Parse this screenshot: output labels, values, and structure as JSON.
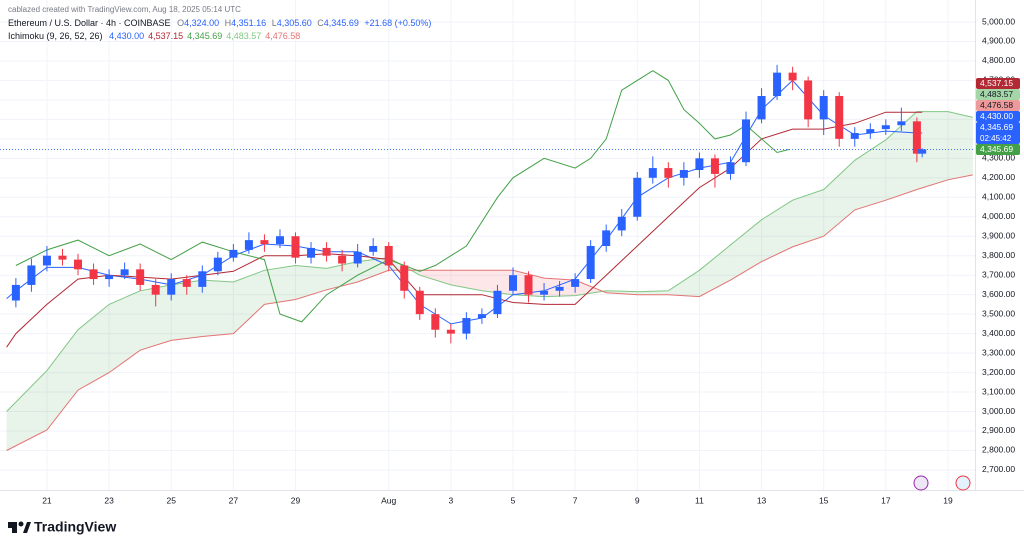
{
  "header": {
    "credit": "cablazed created with TradingView.com, Aug 18, 2025 05:14 UTC",
    "symbol": "Ethereum / U.S. Dollar · 4h · COINBASE",
    "ohlc": [
      {
        "label": "O",
        "value": "4,324.00"
      },
      {
        "label": "H",
        "value": "4,351.16"
      },
      {
        "label": "L",
        "value": "4,305.60"
      },
      {
        "label": "C",
        "value": "4,345.69"
      }
    ],
    "change": "+21.68 (+0.50%)",
    "indicator": "Ichimoku (9, 26, 52, 26)",
    "indicator_values": [
      {
        "value": "4,430.00",
        "color": "#2962ff"
      },
      {
        "value": "4,537.15",
        "color": "#b22833"
      },
      {
        "value": "4,345.69",
        "color": "#43a047"
      },
      {
        "value": "4,483.57",
        "color": "#81c784"
      },
      {
        "value": "4,476.58",
        "color": "#e57373"
      }
    ]
  },
  "chart_data": {
    "type": "candlestick",
    "x": [
      20,
      20.5,
      21,
      21.5,
      22,
      22.5,
      23,
      23.5,
      24,
      24.5,
      25,
      25.5,
      26,
      26.5,
      27,
      27.5,
      28,
      28.5,
      29,
      29.5,
      30,
      30.5,
      31,
      31.5,
      32,
      32.5,
      33,
      33.5,
      34,
      34.5,
      35,
      35.5,
      36,
      36.5,
      37,
      37.5,
      38,
      38.5,
      39,
      39.5,
      40,
      40.5,
      41,
      41.5,
      42,
      42.5,
      43,
      43.5,
      44,
      44.5,
      45,
      45.5,
      46,
      46.5,
      47,
      47.5,
      48,
      48.5,
      49,
      49.17
    ],
    "open": [
      3570,
      3650,
      3750,
      3800,
      3780,
      3730,
      3680,
      3700,
      3730,
      3650,
      3600,
      3680,
      3640,
      3720,
      3790,
      3830,
      3880,
      3860,
      3900,
      3790,
      3840,
      3800,
      3760,
      3820,
      3850,
      3750,
      3620,
      3500,
      3420,
      3400,
      3480,
      3500,
      3620,
      3700,
      3600,
      3620,
      3640,
      3680,
      3850,
      3930,
      4000,
      4200,
      4250,
      4200,
      4240,
      4300,
      4220,
      4280,
      4500,
      4620,
      4740,
      4700,
      4500,
      4620,
      4400,
      4430,
      4450,
      4470,
      4490,
      4324
    ],
    "high": [
      3685,
      3785,
      3850,
      3835,
      3810,
      3760,
      3730,
      3765,
      3760,
      3680,
      3710,
      3700,
      3750,
      3820,
      3860,
      3920,
      3910,
      3935,
      3920,
      3870,
      3870,
      3830,
      3860,
      3890,
      3870,
      3770,
      3640,
      3530,
      3450,
      3510,
      3530,
      3650,
      3740,
      3720,
      3660,
      3670,
      3710,
      3880,
      3960,
      4040,
      4230,
      4310,
      4280,
      4280,
      4330,
      4320,
      4310,
      4540,
      4660,
      4780,
      4770,
      4720,
      4650,
      4640,
      4460,
      4480,
      4500,
      4560,
      4510,
      4351.16
    ],
    "low": [
      3535,
      3615,
      3720,
      3750,
      3700,
      3650,
      3640,
      3680,
      3620,
      3540,
      3570,
      3600,
      3610,
      3700,
      3770,
      3810,
      3820,
      3840,
      3760,
      3760,
      3770,
      3720,
      3740,
      3800,
      3720,
      3580,
      3470,
      3380,
      3350,
      3370,
      3450,
      3480,
      3600,
      3560,
      3570,
      3590,
      3610,
      3660,
      3820,
      3900,
      3980,
      4170,
      4150,
      4160,
      4200,
      4150,
      4190,
      4260,
      4480,
      4600,
      4650,
      4460,
      4420,
      4360,
      4360,
      4400,
      4420,
      4440,
      4280,
      4305.6
    ],
    "close": [
      3650,
      3750,
      3800,
      3780,
      3730,
      3680,
      3700,
      3730,
      3650,
      3600,
      3680,
      3640,
      3720,
      3790,
      3830,
      3880,
      3860,
      3900,
      3790,
      3840,
      3800,
      3760,
      3820,
      3850,
      3750,
      3620,
      3500,
      3420,
      3400,
      3480,
      3500,
      3620,
      3700,
      3600,
      3620,
      3640,
      3680,
      3850,
      3930,
      4000,
      4200,
      4250,
      4200,
      4240,
      4300,
      4220,
      4280,
      4500,
      4620,
      4740,
      4700,
      4500,
      4620,
      4400,
      4430,
      4450,
      4470,
      4490,
      4324,
      4345.69
    ],
    "up_color": "#2962ff",
    "down_color": "#f23645",
    "xlim": [
      19.65,
      50.87
    ],
    "xticks": [
      21,
      23,
      25,
      27,
      29,
      {
        "value": 32,
        "label": "Aug"
      },
      {
        "value": 34,
        "label": "3"
      },
      {
        "value": 36,
        "label": "5"
      },
      {
        "value": 38,
        "label": "7"
      },
      {
        "value": 40,
        "label": "9"
      },
      {
        "value": 42,
        "label": "11"
      },
      {
        "value": 44,
        "label": "13"
      },
      {
        "value": 46,
        "label": "15"
      },
      {
        "value": 48,
        "label": "17"
      },
      {
        "value": 50,
        "label": "19"
      }
    ],
    "ylim": [
      2597,
      5036
    ],
    "yticks": [
      {
        "value": 2700,
        "label": "2,700.00"
      },
      {
        "value": 2800,
        "label": "2,800.00"
      },
      {
        "value": 2900,
        "label": "2,900.00"
      },
      {
        "value": 3000,
        "label": "3,000.00"
      },
      {
        "value": 3100,
        "label": "3,100.00"
      },
      {
        "value": 3200,
        "label": "3,200.00"
      },
      {
        "value": 3300,
        "label": "3,300.00"
      },
      {
        "value": 3400,
        "label": "3,400.00"
      },
      {
        "value": 3500,
        "label": "3,500.00"
      },
      {
        "value": 3600,
        "label": "3,600.00"
      },
      {
        "value": 3700,
        "label": "3,700.00"
      },
      {
        "value": 3800,
        "label": "3,800.00"
      },
      {
        "value": 3900,
        "label": "3,900.00"
      },
      {
        "value": 4000,
        "label": "4,000.00"
      },
      {
        "value": 4100,
        "label": "4,100.00"
      },
      {
        "value": 4200,
        "label": "4,200.00"
      },
      {
        "value": 4300,
        "label": "4,300.00"
      },
      {
        "value": 4400,
        "label": "4,400.00"
      },
      {
        "value": 4500,
        "label": "4,500.00"
      },
      {
        "value": 4600,
        "label": "4,600.00"
      },
      {
        "value": 4700,
        "label": "4,700.00"
      },
      {
        "value": 4800,
        "label": "4,800.00"
      },
      {
        "value": 4900,
        "label": "4,900.00"
      },
      {
        "value": 5000,
        "label": "5,000.00"
      }
    ],
    "grid": true,
    "price_line_color": "#2962ff",
    "lines": [
      {
        "color": "#2962ff",
        "x": [
          19.7,
          20,
          21,
          22,
          23,
          24,
          25,
          26,
          27,
          28,
          29,
          30,
          31,
          32,
          33,
          34,
          35,
          36,
          37,
          38,
          39,
          40,
          41,
          42,
          43,
          44,
          45,
          46,
          47,
          48,
          49,
          49.17
        ],
        "values": [
          3580,
          3620,
          3740,
          3740,
          3700,
          3680,
          3650,
          3700,
          3800,
          3860,
          3850,
          3820,
          3820,
          3750,
          3550,
          3450,
          3480,
          3600,
          3620,
          3680,
          3880,
          4100,
          4200,
          4250,
          4280,
          4550,
          4700,
          4520,
          4420,
          4440,
          4430,
          4430
        ]
      },
      {
        "color": "#b22833",
        "x": [
          19.7,
          20,
          21,
          22,
          23,
          24,
          25,
          26,
          27,
          28,
          29,
          30,
          31,
          32,
          33,
          34,
          35,
          36,
          37,
          38,
          39,
          40,
          41,
          42,
          43,
          44,
          45,
          46,
          47,
          48,
          49,
          49.17
        ],
        "values": [
          3330,
          3400,
          3550,
          3680,
          3700,
          3690,
          3680,
          3700,
          3720,
          3800,
          3800,
          3810,
          3800,
          3780,
          3600,
          3600,
          3600,
          3560,
          3550,
          3550,
          3700,
          3850,
          4000,
          4150,
          4250,
          4400,
          4450,
          4450,
          4480,
          4537,
          4537.15,
          4537.15
        ]
      },
      {
        "color": "#43a047",
        "x": [
          20,
          21,
          22,
          23,
          24,
          25,
          26,
          27,
          28,
          28.5,
          29.2,
          30,
          31,
          32,
          33,
          33.5,
          34.5,
          35.5,
          36,
          37,
          38,
          38.5,
          39,
          39.5,
          40.5,
          41,
          41.5,
          42,
          42.5,
          43,
          43.5,
          44.5,
          44.9
        ],
        "values": [
          3750,
          3830,
          3880,
          3800,
          3860,
          3780,
          3870,
          3820,
          3780,
          3500,
          3460,
          3600,
          3700,
          3780,
          3720,
          3750,
          3850,
          4100,
          4200,
          4300,
          4250,
          4300,
          4400,
          4650,
          4750,
          4700,
          4550,
          4480,
          4400,
          4420,
          4470,
          4330,
          4345.69
        ]
      }
    ],
    "cloud": {
      "x": [
        19.7,
        21,
        22,
        23,
        24,
        25,
        26,
        27,
        28,
        29,
        30,
        31,
        32,
        33,
        34,
        35,
        36,
        37,
        38,
        39,
        40,
        41,
        42,
        43,
        44,
        45,
        46,
        47,
        48,
        49,
        50,
        50.8
      ],
      "span_a": {
        "color": "#81c784",
        "values": [
          3000,
          3210,
          3420,
          3550,
          3620,
          3650,
          3675,
          3665,
          3725,
          3750,
          3735,
          3770,
          3790,
          3700,
          3650,
          3620,
          3600,
          3590,
          3595,
          3620,
          3615,
          3620,
          3725,
          3855,
          3985,
          4085,
          4140,
          4290,
          4395,
          4540,
          4540,
          4510
        ]
      },
      "span_b": {
        "color": "#e57373",
        "values": [
          2800,
          2905,
          3110,
          3200,
          3315,
          3365,
          3385,
          3400,
          3550,
          3575,
          3625,
          3665,
          3725,
          3725,
          3725,
          3725,
          3725,
          3685,
          3675,
          3610,
          3600,
          3600,
          3590,
          3675,
          3770,
          3845,
          3900,
          4035,
          4085,
          4140,
          4190,
          4215
        ]
      },
      "up_fill": "rgba(67,160,71,0.12)",
      "down_fill": "rgba(242,54,69,0.12)"
    },
    "price_labels": [
      {
        "value": 4537.15,
        "label": "4,537.15",
        "color": "#b22833",
        "text_color": "#ffffff"
      },
      {
        "value": 4483.57,
        "label": "4,483.57",
        "color": "#a5d6a7",
        "text_color": "#131722"
      },
      {
        "value": 4476.58,
        "label": "4,476.58",
        "color": "#ef9a9a",
        "text_color": "#131722"
      },
      {
        "value": 4430.0,
        "label": "4,430.00",
        "color": "#2962ff",
        "text_color": "#ffffff"
      },
      {
        "value": 4345.69,
        "label": "4,345.69",
        "countdown": "02:45:42",
        "color": "#2962ff",
        "text_color": "#ffffff"
      },
      {
        "value": 4345.69,
        "label": "4,345.69",
        "color": "#43a047",
        "text_color": "#ffffff"
      }
    ]
  },
  "footer": {
    "brand": "TradingView"
  }
}
